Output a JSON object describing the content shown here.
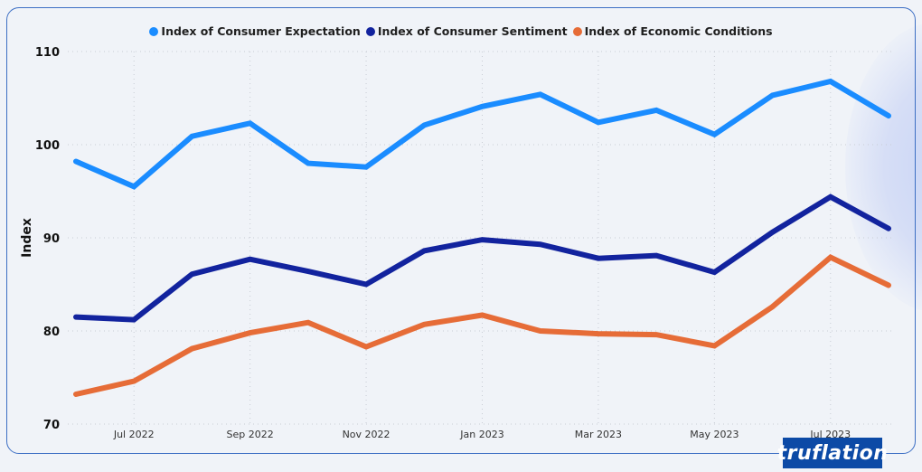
{
  "legend": [
    {
      "label": "Index of Consumer Expectation",
      "color": "#1a8cff"
    },
    {
      "label": "Index of Consumer Sentiment",
      "color": "#12239e"
    },
    {
      "label": "Index of Economic Conditions",
      "color": "#e66c37"
    }
  ],
  "logo_text": "truflation",
  "chart_data": {
    "type": "line",
    "title": "",
    "xlabel": "",
    "ylabel": "Index",
    "ylim": [
      70,
      110
    ],
    "yticks": [
      70,
      80,
      90,
      100,
      110
    ],
    "x": [
      "Jun 2022",
      "Jul 2022",
      "Aug 2022",
      "Sep 2022",
      "Oct 2022",
      "Nov 2022",
      "Dec 2022",
      "Jan 2023",
      "Feb 2023",
      "Mar 2023",
      "Apr 2023",
      "May 2023",
      "Jun 2023",
      "Jul 2023",
      "Aug 2023"
    ],
    "xtick_labels": [
      "Jul 2022",
      "Sep 2022",
      "Nov 2022",
      "Jan 2023",
      "Mar 2023",
      "May 2023",
      "Jul 2023"
    ],
    "grid": true,
    "legend_position": "top-center",
    "series": [
      {
        "name": "Index of Consumer Expectation",
        "color": "#1a8cff",
        "values": [
          98.2,
          95.5,
          100.9,
          102.3,
          98.0,
          97.6,
          102.1,
          104.1,
          105.4,
          102.4,
          103.7,
          101.1,
          105.3,
          106.8,
          103.1
        ]
      },
      {
        "name": "Index of Consumer Sentiment",
        "color": "#12239e",
        "values": [
          81.5,
          81.2,
          86.1,
          87.7,
          86.4,
          85.0,
          88.6,
          89.8,
          89.3,
          87.8,
          88.1,
          86.3,
          90.6,
          94.4,
          91.0
        ]
      },
      {
        "name": "Index of Economic Conditions",
        "color": "#e66c37",
        "values": [
          73.2,
          74.6,
          78.1,
          79.8,
          80.9,
          78.3,
          80.7,
          81.7,
          80.0,
          79.7,
          79.6,
          78.4,
          82.6,
          87.9,
          84.9
        ]
      }
    ]
  }
}
